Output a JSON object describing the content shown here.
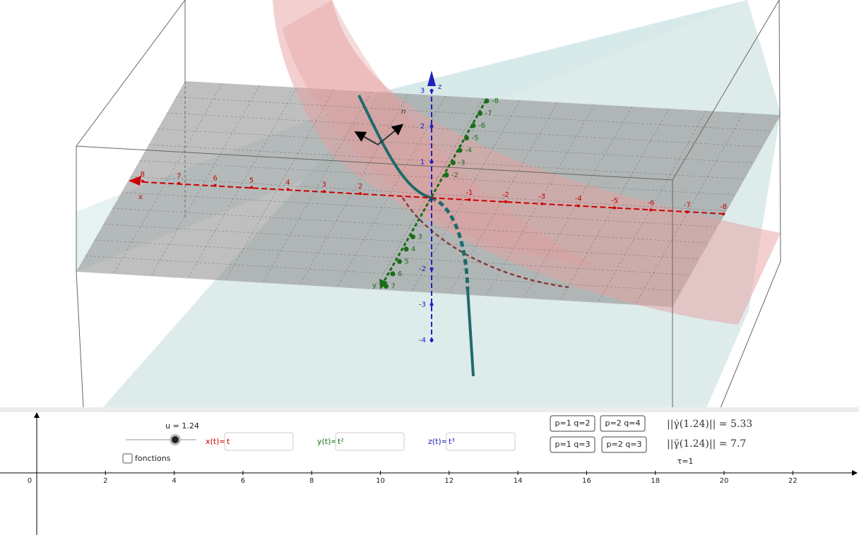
{
  "view3d": {
    "x_label": "x",
    "y_label": "y",
    "z_label": "z",
    "normal_label": "n",
    "x_ticks": [
      8,
      7,
      6,
      5,
      4,
      3,
      2,
      -1,
      -2,
      -3,
      -4,
      -5,
      -6,
      -7,
      -8
    ],
    "y_ticks": [
      -8,
      -7,
      -6,
      -5,
      -4,
      -3,
      -2,
      3,
      4,
      5,
      6,
      7
    ],
    "z_ticks": [
      3,
      2,
      1,
      -2,
      -3,
      -4
    ]
  },
  "controls": {
    "slider_label": "u = 1.24",
    "checkbox_label": "fonctions",
    "x_input_label": "x(t)=",
    "x_input_value": "t",
    "y_input_label": "y(t)=",
    "y_input_value": "t²",
    "z_input_label": "z(t)=",
    "z_input_value": "t³",
    "buttons": [
      "p=1 q=2",
      "p=2 q=4",
      "p=1 q=3",
      "p=2 q=3"
    ],
    "velocity_norm": "||γ̇(1.24)|| = 5.33",
    "acceleration_norm": "||γ̈(1.24)|| = 7.7",
    "torsion": "τ=1"
  },
  "graphics2d": {
    "x_ticks": [
      0,
      2,
      4,
      6,
      8,
      10,
      12,
      14,
      16,
      18,
      20,
      22
    ]
  }
}
